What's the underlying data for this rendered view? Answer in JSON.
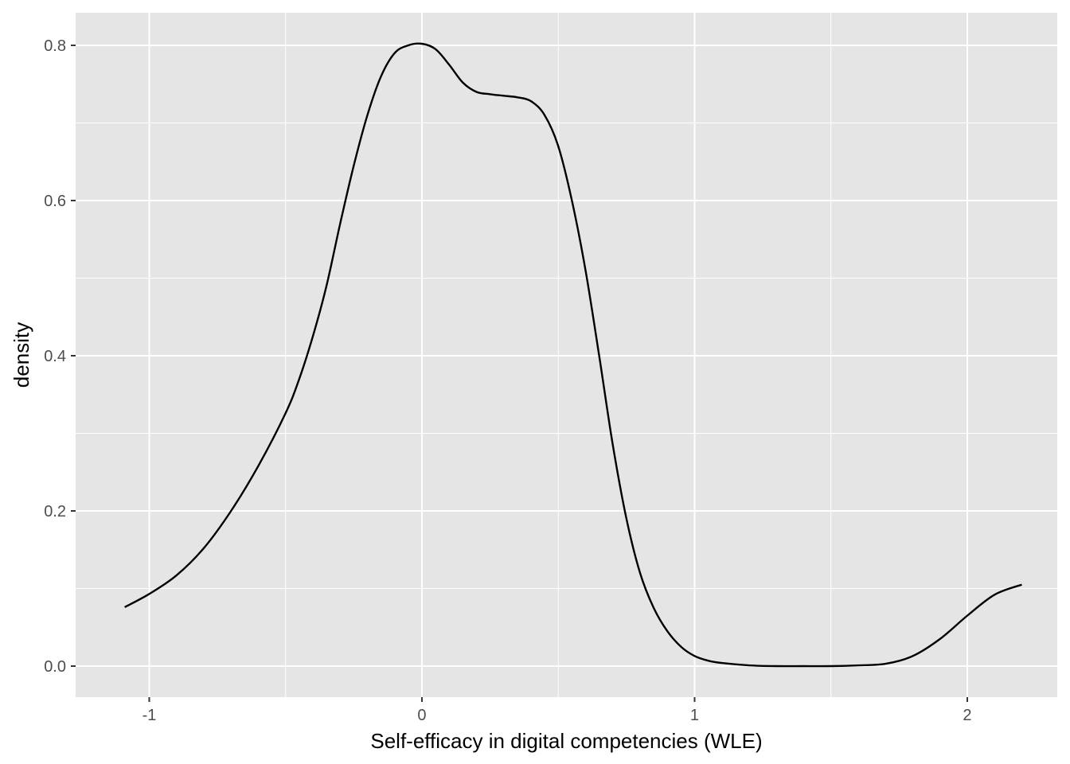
{
  "chart_data": {
    "type": "line",
    "title": "",
    "xlabel": "Self-efficacy in digital competencies (WLE)",
    "ylabel": "density",
    "xlim": [
      -1.27,
      2.33
    ],
    "ylim": [
      -0.04,
      0.842
    ],
    "x_ticks": [
      -1,
      0,
      1,
      2
    ],
    "x_tick_labels": [
      "-1",
      "0",
      "1",
      "2"
    ],
    "y_ticks": [
      0.0,
      0.2,
      0.4,
      0.6,
      0.8
    ],
    "y_tick_labels": [
      "0.0",
      "0.2",
      "0.4",
      "0.6",
      "0.8"
    ],
    "grid": true,
    "panel_background": "#e5e5e5",
    "grid_color": "#ffffff",
    "series": [
      {
        "color": "#000000",
        "x": [
          -1.09,
          -1.0,
          -0.9,
          -0.8,
          -0.7,
          -0.6,
          -0.5,
          -0.45,
          -0.4,
          -0.35,
          -0.3,
          -0.25,
          -0.2,
          -0.15,
          -0.1,
          -0.05,
          0.0,
          0.05,
          0.1,
          0.15,
          0.2,
          0.25,
          0.3,
          0.35,
          0.4,
          0.45,
          0.5,
          0.55,
          0.6,
          0.65,
          0.7,
          0.75,
          0.8,
          0.85,
          0.9,
          0.95,
          1.0,
          1.05,
          1.1,
          1.2,
          1.3,
          1.4,
          1.5,
          1.6,
          1.7,
          1.8,
          1.9,
          2.0,
          2.1,
          2.2
        ],
        "y": [
          0.076,
          0.093,
          0.117,
          0.152,
          0.2,
          0.258,
          0.326,
          0.37,
          0.425,
          0.49,
          0.57,
          0.645,
          0.71,
          0.76,
          0.79,
          0.8,
          0.802,
          0.795,
          0.775,
          0.752,
          0.74,
          0.737,
          0.735,
          0.733,
          0.728,
          0.71,
          0.67,
          0.6,
          0.51,
          0.4,
          0.285,
          0.19,
          0.12,
          0.075,
          0.045,
          0.025,
          0.013,
          0.007,
          0.004,
          0.001,
          0.0,
          0.0,
          0.0,
          0.001,
          0.003,
          0.013,
          0.035,
          0.065,
          0.092,
          0.105
        ]
      }
    ]
  }
}
